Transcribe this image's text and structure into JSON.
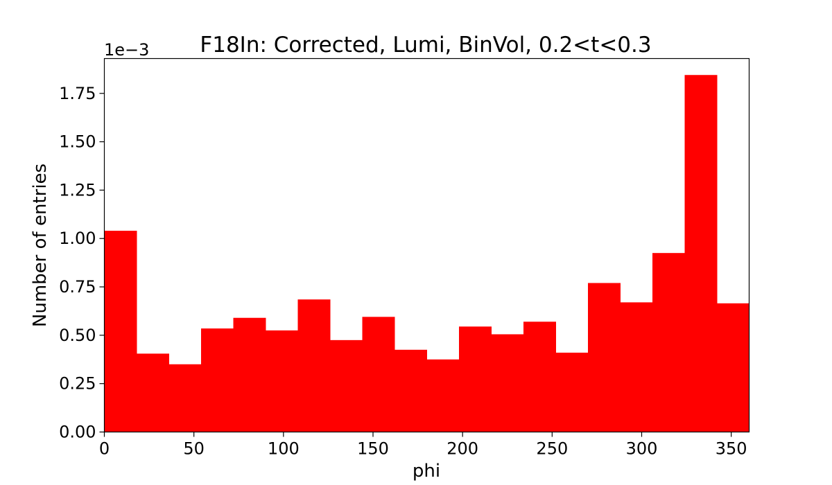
{
  "chart_data": {
    "type": "bar",
    "title": "F18In: Corrected, Lumi, BinVol, 0.2<t<0.3",
    "xlabel": "phi",
    "ylabel": "Number of entries",
    "y_offset_text": "1e−3",
    "y_scale": 0.001,
    "xlim": [
      0,
      360
    ],
    "ylim": [
      0,
      1.93
    ],
    "x_ticks": [
      "0",
      "50",
      "100",
      "150",
      "200",
      "250",
      "300",
      "350"
    ],
    "y_ticks": [
      "0.00",
      "0.25",
      "0.50",
      "0.75",
      "1.00",
      "1.25",
      "1.50",
      "1.75"
    ],
    "bin_edges": [
      0,
      18,
      36,
      54,
      72,
      90,
      108,
      126,
      144,
      162,
      180,
      198,
      216,
      234,
      252,
      270,
      288,
      306,
      324,
      342,
      360
    ],
    "values": [
      1.04,
      0.405,
      0.35,
      0.535,
      0.59,
      0.525,
      0.685,
      0.475,
      0.595,
      0.425,
      0.375,
      0.545,
      0.505,
      0.57,
      0.41,
      0.77,
      0.67,
      0.925,
      1.845,
      0.665
    ],
    "bar_color": "#ff0000",
    "grid": false,
    "legend": "none"
  }
}
